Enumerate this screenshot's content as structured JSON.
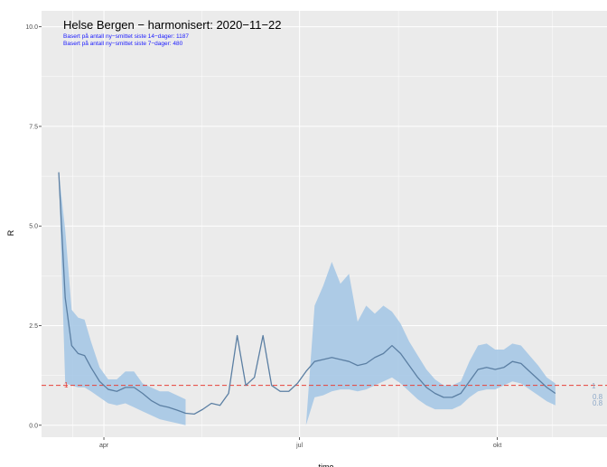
{
  "chart_data": {
    "type": "line",
    "title": "Helse Bergen − harmonisert: 2020−11−22",
    "subtitle_lines": [
      "Basert på antall ny−smittet siste 14−dager:  1187",
      "Basert på antall ny−smittet siste 7−dager:  480"
    ],
    "xlabel": "time",
    "ylabel": "R",
    "yticks": [
      "0.0",
      "2.5",
      "5.0",
      "7.5",
      "10.0"
    ],
    "ylim": [
      -0.3,
      10.4
    ],
    "xlim": [
      "2020-03-03",
      "2020-11-21"
    ],
    "xticks": [
      {
        "label": "apr",
        "date": "2020-04-01"
      },
      {
        "label": "jul",
        "date": "2020-07-01"
      },
      {
        "label": "okt",
        "date": "2020-10-01"
      }
    ],
    "grid": true,
    "reference_line": {
      "y": 1,
      "label": "1",
      "color": "#e8413b",
      "style": "dashed"
    },
    "end_labels": [
      "1",
      "0.8",
      "0.8"
    ],
    "colors": {
      "line": "#5b7fa3",
      "band": "#a6c8e6",
      "panel": "#ebebeb",
      "gridline": "#ffffff",
      "subtitle": "#1a1aff"
    },
    "series": [
      {
        "x": [
          "2020-03-11",
          "2020-03-14",
          "2020-03-17",
          "2020-03-20",
          "2020-03-23",
          "2020-03-26",
          "2020-03-30",
          "2020-04-03",
          "2020-04-07",
          "2020-04-11",
          "2020-04-15",
          "2020-04-19",
          "2020-04-23",
          "2020-04-27",
          "2020-05-01",
          "2020-05-05",
          "2020-05-09",
          "2020-05-13",
          "2020-05-17",
          "2020-05-21",
          "2020-05-25",
          "2020-05-29",
          "2020-06-02",
          "2020-06-06",
          "2020-06-10",
          "2020-06-14",
          "2020-06-18",
          "2020-06-22",
          "2020-06-26",
          "2020-06-30",
          "2020-07-04",
          "2020-07-08",
          "2020-07-12",
          "2020-07-16",
          "2020-07-20",
          "2020-07-24",
          "2020-07-28",
          "2020-08-01",
          "2020-08-05",
          "2020-08-09",
          "2020-08-13",
          "2020-08-17",
          "2020-08-21",
          "2020-08-25",
          "2020-08-29",
          "2020-09-02",
          "2020-09-06",
          "2020-09-10",
          "2020-09-14",
          "2020-09-18",
          "2020-09-22",
          "2020-09-26",
          "2020-09-30",
          "2020-10-04",
          "2020-10-08",
          "2020-10-12",
          "2020-10-16",
          "2020-10-20",
          "2020-10-24",
          "2020-10-28",
          "2020-11-01",
          "2020-11-05",
          "2020-11-09",
          "2020-11-13",
          "2020-11-17"
        ],
        "y": [
          6.35,
          3.2,
          2.0,
          1.8,
          1.75,
          1.45,
          1.1,
          0.9,
          0.85,
          0.95,
          0.95,
          0.8,
          0.62,
          0.5,
          0.45,
          0.38,
          0.3,
          0.28,
          0.4,
          0.55,
          0.5,
          0.8,
          2.25,
          1.0,
          1.2,
          2.25,
          1.0,
          0.85,
          0.85,
          1.05,
          1.35,
          1.6,
          1.65,
          1.7,
          1.65,
          1.6,
          1.5,
          1.55,
          1.7,
          1.8,
          2.0,
          1.8,
          1.5,
          1.2,
          0.95,
          0.8,
          0.7,
          0.7,
          0.8,
          1.1,
          1.4,
          1.45,
          1.4,
          1.45,
          1.6,
          1.55,
          1.35,
          1.15,
          0.95,
          0.8,
          null,
          null,
          null,
          null,
          null
        ],
        "lower": [
          6.35,
          1.05,
          1.0,
          0.95,
          0.95,
          0.85,
          0.7,
          0.55,
          0.5,
          0.55,
          0.45,
          0.35,
          0.25,
          0.15,
          0.1,
          0.05,
          0.0,
          null,
          null,
          null,
          null,
          null,
          null,
          null,
          null,
          null,
          null,
          null,
          null,
          null,
          0.0,
          0.7,
          0.75,
          0.85,
          0.9,
          0.9,
          0.85,
          0.9,
          1.0,
          1.1,
          1.2,
          1.05,
          0.85,
          0.65,
          0.5,
          0.4,
          0.4,
          0.4,
          0.5,
          0.7,
          0.85,
          0.9,
          0.9,
          1.0,
          1.1,
          1.05,
          0.9,
          0.75,
          0.6,
          0.5,
          null,
          null,
          null,
          null,
          null
        ],
        "upper": [
          6.35,
          4.9,
          2.9,
          2.7,
          2.65,
          2.1,
          1.45,
          1.15,
          1.15,
          1.35,
          1.35,
          1.05,
          0.95,
          0.85,
          0.85,
          0.75,
          0.65,
          0.28,
          null,
          null,
          null,
          null,
          null,
          null,
          null,
          null,
          null,
          null,
          null,
          null,
          0.0,
          3.0,
          3.5,
          4.1,
          3.55,
          3.8,
          2.6,
          3.0,
          2.8,
          3.0,
          2.85,
          2.55,
          2.1,
          1.75,
          1.4,
          1.15,
          1.0,
          1.0,
          1.1,
          1.6,
          2.0,
          2.05,
          1.9,
          1.9,
          2.05,
          2.0,
          1.75,
          1.5,
          1.2,
          1.05,
          null,
          null,
          null,
          null,
          null
        ]
      }
    ]
  }
}
